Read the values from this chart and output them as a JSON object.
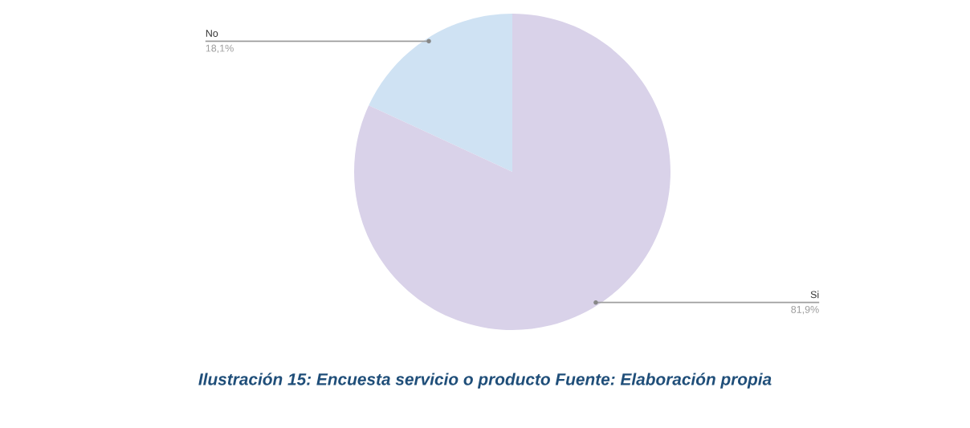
{
  "chart_data": {
    "type": "pie",
    "categories": [
      "No",
      "Si"
    ],
    "values": [
      18.1,
      81.9
    ],
    "value_labels": [
      "18,1%",
      "81,9%"
    ],
    "colors": [
      "#cfe2f3",
      "#d9d2e9"
    ],
    "annotations": [
      "Ilustración 15: Encuesta servicio o producto Fuente: Elaboración propia"
    ]
  }
}
